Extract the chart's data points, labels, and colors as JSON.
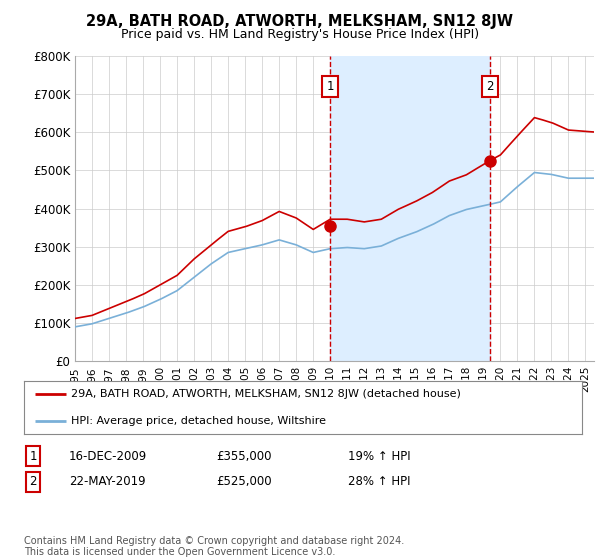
{
  "title": "29A, BATH ROAD, ATWORTH, MELKSHAM, SN12 8JW",
  "subtitle": "Price paid vs. HM Land Registry's House Price Index (HPI)",
  "ylim": [
    0,
    800000
  ],
  "xlim_start": 1995.0,
  "xlim_end": 2025.5,
  "hpi_color": "#7ab0d8",
  "price_color": "#cc0000",
  "shade_color": "#ddeeff",
  "marker1_x": 2010.0,
  "marker1_y": 355000,
  "marker2_x": 2019.38,
  "marker2_y": 525000,
  "legend_line1": "29A, BATH ROAD, ATWORTH, MELKSHAM, SN12 8JW (detached house)",
  "legend_line2": "HPI: Average price, detached house, Wiltshire",
  "table_row1": [
    "1",
    "16-DEC-2009",
    "£355,000",
    "19% ↑ HPI"
  ],
  "table_row2": [
    "2",
    "22-MAY-2019",
    "£525,000",
    "28% ↑ HPI"
  ],
  "footer": "Contains HM Land Registry data © Crown copyright and database right 2024.\nThis data is licensed under the Open Government Licence v3.0.",
  "background_color": "#ffffff",
  "grid_color": "#cccccc"
}
